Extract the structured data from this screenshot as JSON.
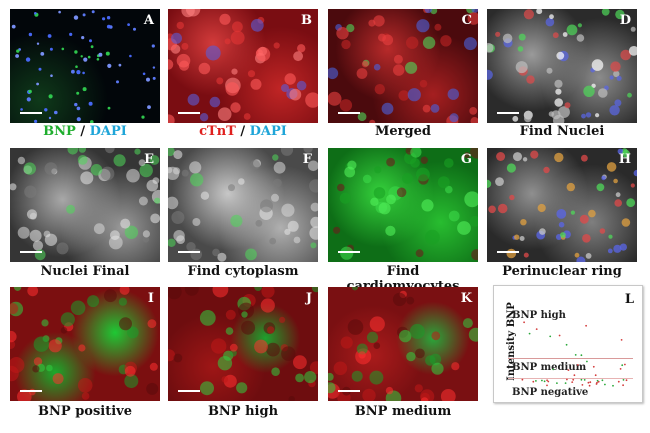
{
  "panels": [
    {
      "id": "A",
      "caption": "BNP / DAPI"
    },
    {
      "id": "B",
      "caption": "cTnT / DAPI"
    },
    {
      "id": "C",
      "caption": "Merged"
    },
    {
      "id": "D",
      "caption": "Find Nuclei"
    },
    {
      "id": "E",
      "caption": "Nuclei Final"
    },
    {
      "id": "F",
      "caption": "Find cytoplasm"
    },
    {
      "id": "G",
      "caption": "Find cardiomyocytes"
    },
    {
      "id": "H",
      "caption": "Perinuclear ring"
    },
    {
      "id": "I",
      "caption": "BNP positive"
    },
    {
      "id": "J",
      "caption": "BNP high"
    },
    {
      "id": "K",
      "caption": "BNP medium"
    },
    {
      "id": "L"
    }
  ],
  "caption_parts": {
    "A": {
      "first": "BNP",
      "sep": " / ",
      "second": "DAPI"
    },
    "B": {
      "first": "cTnT",
      "sep": " / ",
      "second": "DAPI"
    }
  },
  "panel_l": {
    "ylabel": "Intensity BNP",
    "zones": [
      "BNP high",
      "BNP medium",
      "BNP negative"
    ]
  },
  "colors": {
    "bnp_green": "#1fae2e",
    "ctnt_red": "#e0201e",
    "dapi_blue": "#1fa5d8",
    "threshold_line": "#d99a9a"
  }
}
